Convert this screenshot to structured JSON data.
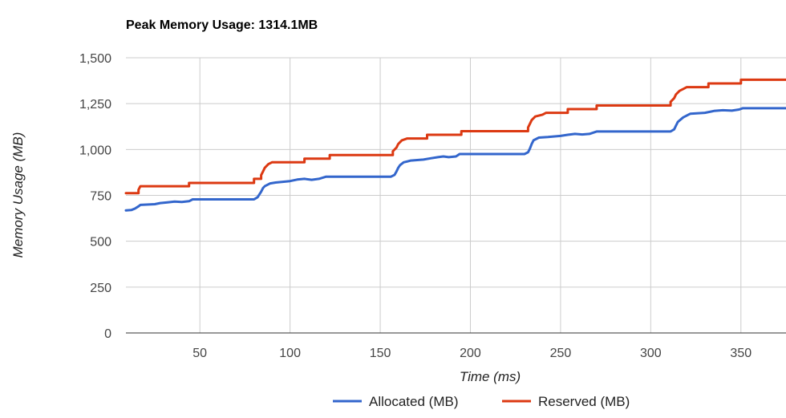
{
  "chart_data": {
    "type": "line",
    "title": "Peak Memory Usage: 1314.1MB",
    "xlabel": "Time (ms)",
    "ylabel": "Memory Usage (MB)",
    "xlim": [
      9,
      375
    ],
    "ylim": [
      0,
      1500
    ],
    "x_ticks": [
      50,
      100,
      150,
      200,
      250,
      300,
      350
    ],
    "y_ticks": [
      0,
      250,
      500,
      750,
      1000,
      1250,
      1500
    ],
    "x_tick_labels": [
      "50",
      "100",
      "150",
      "200",
      "250",
      "300",
      "350"
    ],
    "y_tick_labels": [
      "0",
      "250",
      "500",
      "750",
      "1,000",
      "1,250",
      "1,500"
    ],
    "grid": true,
    "legend_position": "bottom",
    "series": [
      {
        "name": "Allocated (MB)",
        "color": "#3366cc",
        "points": [
          [
            9,
            668
          ],
          [
            12,
            670
          ],
          [
            14,
            678
          ],
          [
            16,
            690
          ],
          [
            17,
            698
          ],
          [
            25,
            702
          ],
          [
            28,
            708
          ],
          [
            32,
            712
          ],
          [
            36,
            716
          ],
          [
            40,
            714
          ],
          [
            44,
            718
          ],
          [
            46,
            728
          ],
          [
            80,
            728
          ],
          [
            82,
            740
          ],
          [
            84,
            770
          ],
          [
            85,
            790
          ],
          [
            86,
            800
          ],
          [
            89,
            815
          ],
          [
            92,
            820
          ],
          [
            100,
            828
          ],
          [
            104,
            836
          ],
          [
            108,
            840
          ],
          [
            112,
            835
          ],
          [
            116,
            840
          ],
          [
            120,
            852
          ],
          [
            156,
            852
          ],
          [
            158,
            862
          ],
          [
            159,
            880
          ],
          [
            160,
            900
          ],
          [
            161,
            915
          ],
          [
            163,
            930
          ],
          [
            167,
            940
          ],
          [
            174,
            945
          ],
          [
            178,
            952
          ],
          [
            182,
            958
          ],
          [
            185,
            962
          ],
          [
            188,
            958
          ],
          [
            192,
            962
          ],
          [
            194,
            975
          ],
          [
            230,
            975
          ],
          [
            232,
            985
          ],
          [
            233,
            1005
          ],
          [
            234,
            1030
          ],
          [
            235,
            1050
          ],
          [
            238,
            1065
          ],
          [
            243,
            1068
          ],
          [
            250,
            1074
          ],
          [
            254,
            1080
          ],
          [
            258,
            1085
          ],
          [
            262,
            1082
          ],
          [
            266,
            1085
          ],
          [
            270,
            1098
          ],
          [
            311,
            1098
          ],
          [
            313,
            1110
          ],
          [
            314,
            1130
          ],
          [
            315,
            1150
          ],
          [
            318,
            1175
          ],
          [
            322,
            1195
          ],
          [
            330,
            1200
          ],
          [
            335,
            1210
          ],
          [
            340,
            1214
          ],
          [
            345,
            1212
          ],
          [
            349,
            1218
          ],
          [
            351,
            1225
          ],
          [
            375,
            1225
          ]
        ]
      },
      {
        "name": "Reserved (MB)",
        "color": "#dc3912",
        "points": [
          [
            9,
            762
          ],
          [
            16,
            762
          ],
          [
            16,
            780
          ],
          [
            17,
            800
          ],
          [
            44,
            800
          ],
          [
            44,
            818
          ],
          [
            80,
            818
          ],
          [
            80,
            840
          ],
          [
            84,
            840
          ],
          [
            84,
            860
          ],
          [
            85,
            880
          ],
          [
            86,
            900
          ],
          [
            88,
            920
          ],
          [
            90,
            930
          ],
          [
            108,
            930
          ],
          [
            108,
            950
          ],
          [
            122,
            950
          ],
          [
            122,
            970
          ],
          [
            157,
            970
          ],
          [
            157,
            990
          ],
          [
            159,
            1010
          ],
          [
            160,
            1030
          ],
          [
            162,
            1050
          ],
          [
            165,
            1060
          ],
          [
            176,
            1060
          ],
          [
            176,
            1080
          ],
          [
            195,
            1080
          ],
          [
            195,
            1100
          ],
          [
            232,
            1100
          ],
          [
            232,
            1120
          ],
          [
            233,
            1140
          ],
          [
            234,
            1160
          ],
          [
            236,
            1180
          ],
          [
            240,
            1190
          ],
          [
            242,
            1200
          ],
          [
            254,
            1200
          ],
          [
            254,
            1220
          ],
          [
            270,
            1220
          ],
          [
            270,
            1240
          ],
          [
            311,
            1240
          ],
          [
            311,
            1260
          ],
          [
            313,
            1280
          ],
          [
            314,
            1300
          ],
          [
            316,
            1320
          ],
          [
            318,
            1330
          ],
          [
            320,
            1340
          ],
          [
            332,
            1340
          ],
          [
            332,
            1360
          ],
          [
            350,
            1360
          ],
          [
            350,
            1380
          ],
          [
            375,
            1380
          ]
        ]
      }
    ]
  }
}
